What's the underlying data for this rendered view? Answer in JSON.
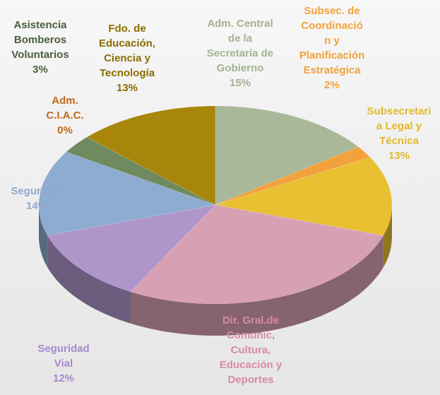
{
  "chart_data": {
    "type": "pie",
    "categories": [
      "Adm. Central\nde la\nSecretaría de\nGobierno",
      "Subsec. de\nCoordinació\nn y\nPlanificación\nEstratégica",
      "Subsecretari\na Legal y\nTécnica",
      "Dir. Gral.de\nComunic,\nCultura,\nEducación y\nDeportes",
      "Seguridad\nVial",
      "Seguridad",
      "Adm.\nC.I.A.C.",
      "Asistencia\nBomberos\nVoluntarios",
      "Fdo. de\nEducación,\nCiencia y\nTecnología"
    ],
    "values": [
      15,
      2,
      13,
      28,
      12,
      14,
      0,
      3,
      13
    ],
    "value_labels": [
      "15%",
      "2%",
      "13%",
      null,
      "12%",
      "14%",
      "0%",
      "3%",
      "13%"
    ],
    "colors": [
      "#a9b898",
      "#f2a13c",
      "#e8c032",
      "#d8a0b4",
      "#ae95ca",
      "#8eabd0",
      "#c0681a",
      "#6f8a5e",
      "#a8860c"
    ],
    "label_colors": [
      "#a3b293",
      "#f0a23a",
      "#e3b92a",
      "#d88aa8",
      "#a58bcd",
      "#8fa9d1",
      "#c0681a",
      "#4b5e3c",
      "#8a6d00"
    ]
  }
}
